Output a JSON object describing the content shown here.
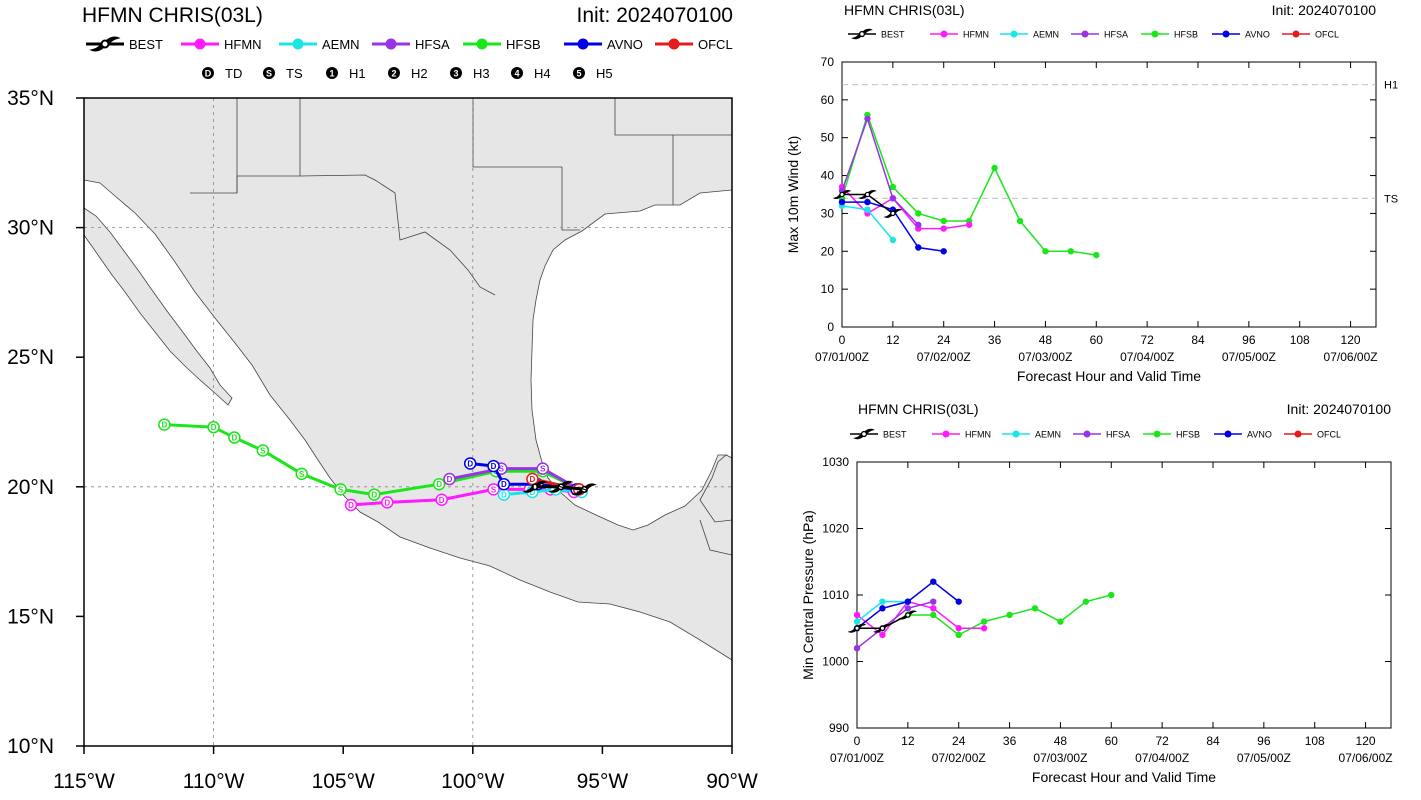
{
  "colors": {
    "BEST": "#000000",
    "HFMN": "#ff1aff",
    "AEMN": "#1ae6e6",
    "HFSA": "#9933e6",
    "HFSB": "#1ae61a",
    "AVNO": "#0000e6",
    "OFCL": "#e61a1a",
    "land": "#e6e6e6",
    "water": "#ffffff"
  },
  "models": [
    "BEST",
    "HFMN",
    "AEMN",
    "HFSA",
    "HFSB",
    "AVNO",
    "OFCL"
  ],
  "intensity_legend": [
    {
      "sym": "D",
      "label": "TD"
    },
    {
      "sym": "S",
      "label": "TS"
    },
    {
      "sym": "1",
      "label": "H1"
    },
    {
      "sym": "2",
      "label": "H2"
    },
    {
      "sym": "3",
      "label": "H3"
    },
    {
      "sym": "4",
      "label": "H4"
    },
    {
      "sym": "5",
      "label": "H5"
    }
  ],
  "track_panel": {
    "title": "HFMN CHRIS(03L)",
    "init": "Init: 2024070100"
  },
  "wind_panel": {
    "title": "HFMN CHRIS(03L)",
    "init": "Init: 2024070100"
  },
  "pres_panel": {
    "title": "HFMN CHRIS(03L)",
    "init": "Init: 2024070100"
  },
  "chart_data": [
    {
      "type": "scatter",
      "title": "HFMN CHRIS(03L)",
      "subtitle": "Init: 2024070100",
      "xlim": [
        -115,
        -90
      ],
      "ylim": [
        10,
        35
      ],
      "x_ticks": [
        -115,
        -110,
        -105,
        -100,
        -95,
        -90
      ],
      "x_tick_labels": [
        "115°W",
        "110°W",
        "105°W",
        "100°W",
        "95°W",
        "90°W"
      ],
      "y_ticks": [
        10,
        15,
        20,
        25,
        30,
        35
      ],
      "y_tick_labels": [
        "10°N",
        "15°N",
        "20°N",
        "25°N",
        "30°N",
        "35°N"
      ],
      "grid_lon": [
        -110,
        -100
      ],
      "grid_lat": [
        20,
        30
      ],
      "series": [
        {
          "name": "BEST",
          "points": [
            {
              "lon": -95.7,
              "lat": 19.9,
              "s": "S"
            },
            {
              "lon": -96.6,
              "lat": 20.0,
              "s": "S"
            },
            {
              "lon": -97.6,
              "lat": 20.0,
              "s": "D"
            }
          ]
        },
        {
          "name": "HFMN",
          "points": [
            {
              "lon": -96.1,
              "lat": 19.8,
              "s": "S"
            },
            {
              "lon": -97.0,
              "lat": 19.9,
              "s": "S"
            },
            {
              "lon": -97.8,
              "lat": 19.9,
              "s": "S"
            },
            {
              "lon": -99.2,
              "lat": 19.9,
              "s": "S"
            },
            {
              "lon": -101.2,
              "lat": 19.5,
              "s": "D"
            },
            {
              "lon": -103.3,
              "lat": 19.4,
              "s": "D"
            },
            {
              "lon": -104.7,
              "lat": 19.3,
              "s": "D"
            }
          ]
        },
        {
          "name": "AEMN",
          "points": [
            {
              "lon": -95.8,
              "lat": 19.8,
              "s": "S"
            },
            {
              "lon": -96.8,
              "lat": 19.9,
              "s": "S"
            },
            {
              "lon": -97.7,
              "lat": 19.8,
              "s": "D"
            },
            {
              "lon": -98.8,
              "lat": 19.7,
              "s": "D"
            }
          ]
        },
        {
          "name": "HFSA",
          "points": [
            {
              "lon": -95.9,
              "lat": 19.9,
              "s": "S"
            },
            {
              "lon": -97.3,
              "lat": 20.7,
              "s": "S"
            },
            {
              "lon": -98.9,
              "lat": 20.7,
              "s": "S"
            },
            {
              "lon": -100.9,
              "lat": 20.3,
              "s": "D"
            }
          ]
        },
        {
          "name": "HFSB",
          "points": [
            {
              "lon": -95.9,
              "lat": 19.9,
              "s": "S"
            },
            {
              "lon": -97.3,
              "lat": 20.6,
              "s": "S"
            },
            {
              "lon": -99.1,
              "lat": 20.6,
              "s": "S"
            },
            {
              "lon": -101.3,
              "lat": 20.1,
              "s": "D"
            },
            {
              "lon": -103.8,
              "lat": 19.7,
              "s": "D"
            },
            {
              "lon": -105.1,
              "lat": 19.9,
              "s": "S"
            },
            {
              "lon": -106.6,
              "lat": 20.5,
              "s": "S"
            },
            {
              "lon": -108.1,
              "lat": 21.4,
              "s": "S"
            },
            {
              "lon": -109.2,
              "lat": 21.9,
              "s": "D"
            },
            {
              "lon": -110.0,
              "lat": 22.3,
              "s": "D"
            },
            {
              "lon": -111.9,
              "lat": 22.4,
              "s": "D"
            }
          ]
        },
        {
          "name": "AVNO",
          "points": [
            {
              "lon": -96.0,
              "lat": 19.9,
              "s": "S"
            },
            {
              "lon": -97.5,
              "lat": 20.1,
              "s": "D"
            },
            {
              "lon": -98.8,
              "lat": 20.1,
              "s": "D"
            },
            {
              "lon": -99.2,
              "lat": 20.8,
              "s": "D"
            },
            {
              "lon": -100.1,
              "lat": 20.9,
              "s": "D"
            }
          ]
        },
        {
          "name": "OFCL",
          "points": [
            {
              "lon": -95.9,
              "lat": 19.9,
              "s": "S"
            },
            {
              "lon": -97.7,
              "lat": 20.3,
              "s": "D"
            }
          ]
        }
      ]
    },
    {
      "type": "line",
      "title": "HFMN CHRIS(03L)",
      "subtitle": "Init: 2024070100",
      "xlabel": "Forecast Hour and Valid Time",
      "ylabel": "Max 10m Wind (kt)",
      "xlim": [
        0,
        126
      ],
      "ylim": [
        0,
        70
      ],
      "x_ticks": [
        0,
        12,
        24,
        36,
        48,
        60,
        72,
        84,
        96,
        108,
        120
      ],
      "x_date_labels": [
        {
          "hour": 0,
          "label": "07/01/00Z"
        },
        {
          "hour": 24,
          "label": "07/02/00Z"
        },
        {
          "hour": 48,
          "label": "07/03/00Z"
        },
        {
          "hour": 72,
          "label": "07/04/00Z"
        },
        {
          "hour": 96,
          "label": "07/05/00Z"
        },
        {
          "hour": 120,
          "label": "07/06/00Z"
        }
      ],
      "y_ticks": [
        0,
        10,
        20,
        30,
        40,
        50,
        60,
        70
      ],
      "ref_lines": [
        {
          "value": 64,
          "label": "H1"
        },
        {
          "value": 34,
          "label": "TS"
        }
      ],
      "series": [
        {
          "name": "BEST",
          "x": [
            0,
            6,
            12
          ],
          "y": [
            35,
            35,
            30
          ]
        },
        {
          "name": "HFMN",
          "x": [
            0,
            6,
            12,
            18,
            24,
            30
          ],
          "y": [
            37,
            30,
            34,
            26,
            26,
            27
          ]
        },
        {
          "name": "AEMN",
          "x": [
            0,
            6,
            12
          ],
          "y": [
            32,
            31,
            23
          ]
        },
        {
          "name": "HFSA",
          "x": [
            0,
            6,
            12,
            18
          ],
          "y": [
            36,
            55,
            34,
            27
          ]
        },
        {
          "name": "HFSB",
          "x": [
            0,
            6,
            12,
            18,
            24,
            30,
            36,
            42,
            48,
            54,
            60
          ],
          "y": [
            34,
            56,
            37,
            30,
            28,
            28,
            42,
            28,
            20,
            20,
            19
          ]
        },
        {
          "name": "AVNO",
          "x": [
            0,
            6,
            12,
            18,
            24
          ],
          "y": [
            33,
            33,
            31,
            21,
            20
          ]
        },
        {
          "name": "OFCL",
          "x": [],
          "y": []
        }
      ]
    },
    {
      "type": "line",
      "title": "HFMN CHRIS(03L)",
      "subtitle": "Init: 2024070100",
      "xlabel": "Forecast Hour and Valid Time",
      "ylabel": "Min Central Pressure (hPa)",
      "xlim": [
        0,
        126
      ],
      "ylim": [
        990,
        1030
      ],
      "x_ticks": [
        0,
        12,
        24,
        36,
        48,
        60,
        72,
        84,
        96,
        108,
        120
      ],
      "x_date_labels": [
        {
          "hour": 0,
          "label": "07/01/00Z"
        },
        {
          "hour": 24,
          "label": "07/02/00Z"
        },
        {
          "hour": 48,
          "label": "07/03/00Z"
        },
        {
          "hour": 72,
          "label": "07/04/00Z"
        },
        {
          "hour": 96,
          "label": "07/05/00Z"
        },
        {
          "hour": 120,
          "label": "07/06/00Z"
        }
      ],
      "y_ticks": [
        990,
        1000,
        1010,
        1020,
        1030
      ],
      "series": [
        {
          "name": "BEST",
          "x": [
            0,
            6,
            12
          ],
          "y": [
            1005,
            1005,
            1007
          ]
        },
        {
          "name": "HFMN",
          "x": [
            0,
            6,
            12,
            18,
            24,
            30
          ],
          "y": [
            1007,
            1004,
            1009,
            1008,
            1005,
            1005
          ]
        },
        {
          "name": "AEMN",
          "x": [
            0,
            6,
            12
          ],
          "y": [
            1006,
            1009,
            1009
          ]
        },
        {
          "name": "HFSA",
          "x": [
            0,
            6,
            12,
            18
          ],
          "y": [
            1002,
            1005,
            1008,
            1009
          ]
        },
        {
          "name": "HFSB",
          "x": [
            0,
            6,
            12,
            18,
            24,
            30,
            36,
            42,
            48,
            54,
            60
          ],
          "y": [
            1005,
            1005,
            1007,
            1007,
            1004,
            1006,
            1007,
            1008,
            1006,
            1009,
            1010
          ]
        },
        {
          "name": "AVNO",
          "x": [
            0,
            6,
            12,
            18,
            24
          ],
          "y": [
            1005,
            1008,
            1009,
            1012,
            1009
          ]
        },
        {
          "name": "OFCL",
          "x": [],
          "y": []
        }
      ]
    }
  ]
}
